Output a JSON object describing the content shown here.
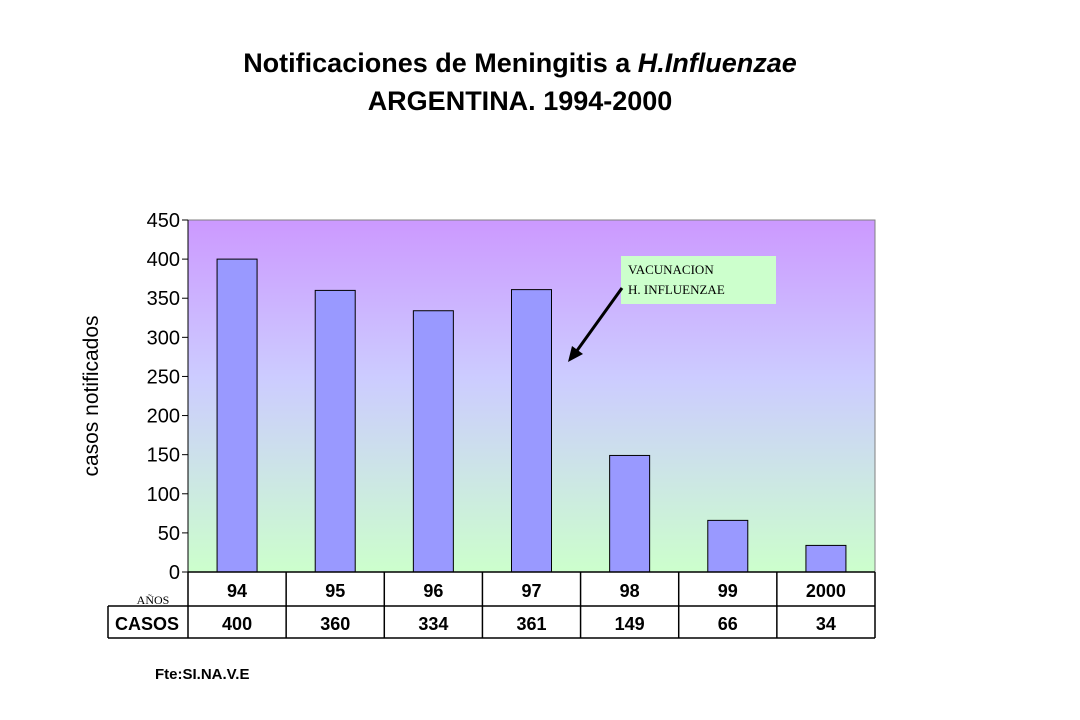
{
  "title": {
    "line1_prefix": "Notificaciones de Meningitis a ",
    "line1_italic": "H.Influenzae",
    "line2": "ARGENTINA.  1994-2000"
  },
  "chart_data": {
    "type": "bar",
    "categories": [
      "94",
      "95",
      "96",
      "97",
      "98",
      "99",
      "2000"
    ],
    "values": [
      400,
      360,
      334,
      361,
      149,
      66,
      34
    ],
    "ylabel": "casos notificados",
    "ylim": [
      0,
      450
    ],
    "yticks": [
      0,
      50,
      100,
      150,
      200,
      250,
      300,
      350,
      400,
      450
    ],
    "grid": false,
    "bar_color": "#9999ff",
    "background_gradient": [
      "#cc99ff",
      "#ccffcc"
    ],
    "table": {
      "header_label": "AÑOS",
      "row_label": "CASOS",
      "row_values": [
        "400",
        "360",
        "334",
        "361",
        "149",
        "66",
        "34"
      ]
    },
    "annotation": {
      "lines": [
        "VACUNACION",
        "H. INFLUENZAE"
      ],
      "box_color": "#ccffcc"
    }
  },
  "source": "Fte:SI.NA.V.E"
}
